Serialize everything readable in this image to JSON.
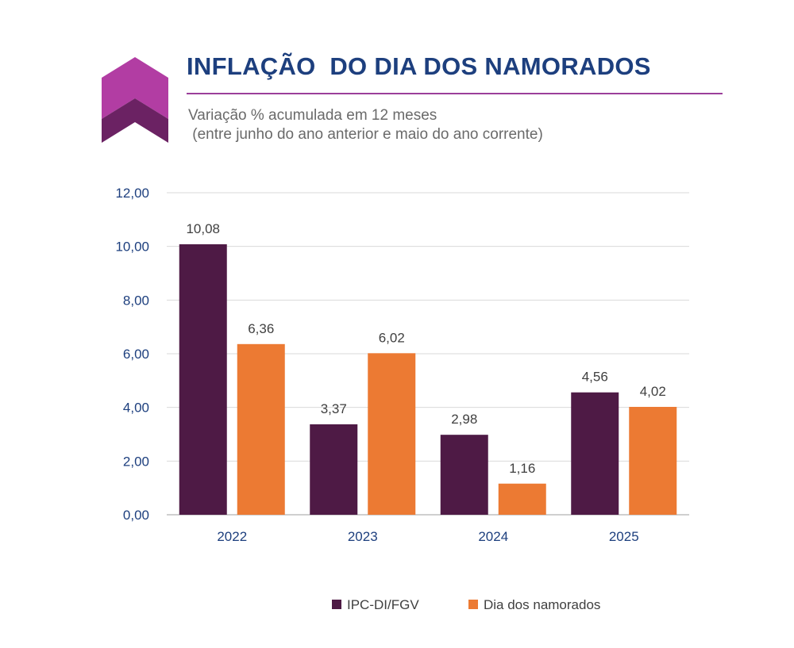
{
  "header": {
    "title": "INFLAÇÃO  DO DIA DOS NAMORADOS",
    "subtitle_line1": "Variação % acumulada em 12 meses",
    "subtitle_line2": " (entre junho do ano anterior e maio do ano corrente)"
  },
  "colors": {
    "title": "#1d3f7e",
    "rule": "#9b3f9a",
    "logo_light": "#b23da3",
    "logo_dark": "#6b2263",
    "ipc": "#4e1a45",
    "dia": "#ec7a33"
  },
  "chart_data": {
    "type": "bar",
    "title": "",
    "xlabel": "",
    "ylabel": "",
    "categories": [
      "2022",
      "2023",
      "2024",
      "2025"
    ],
    "series": [
      {
        "name": "IPC-DI/FGV",
        "values": [
          10.08,
          3.37,
          2.98,
          4.56
        ],
        "labels": [
          "10,08",
          "3,37",
          "2,98",
          "4,56"
        ],
        "color": "#4e1a45"
      },
      {
        "name": "Dia dos namorados",
        "values": [
          6.36,
          6.02,
          1.16,
          4.02
        ],
        "labels": [
          "6,36",
          "6,02",
          "1,16",
          "4,02"
        ],
        "color": "#ec7a33"
      }
    ],
    "ylim": [
      0,
      12
    ],
    "yticks": [
      0,
      2,
      4,
      6,
      8,
      10,
      12
    ],
    "ytick_labels": [
      "0,00",
      "2,00",
      "4,00",
      "6,00",
      "8,00",
      "10,00",
      "12,00"
    ],
    "grid": true,
    "legend_position": "bottom"
  }
}
